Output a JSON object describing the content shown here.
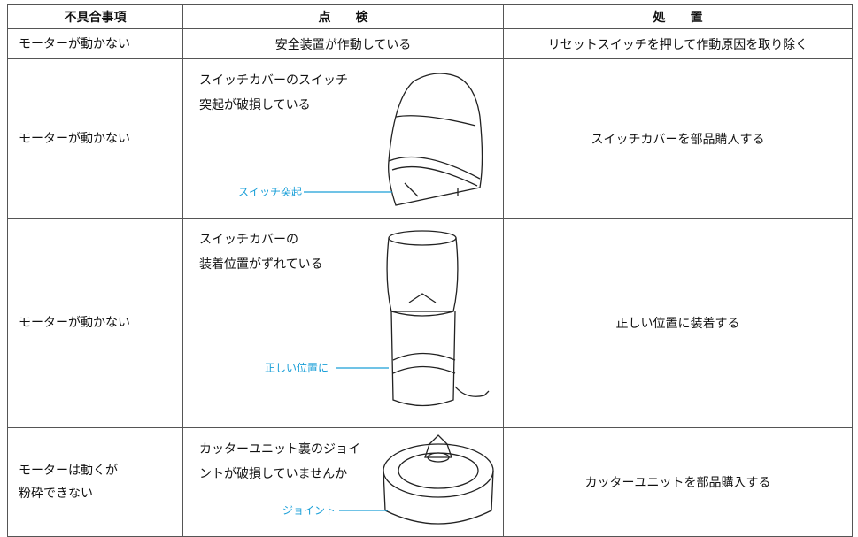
{
  "table": {
    "header": [
      "不具合事項",
      "点　　検",
      "処　　置"
    ],
    "rows": [
      {
        "problem": [
          "モーターが動かない"
        ],
        "check": [
          "安全装置が作動している"
        ],
        "callout": null,
        "action": "リセットスイッチを押して作動原因を取り除く"
      },
      {
        "problem": [
          "モーターが動かない"
        ],
        "check": [
          "スイッチカバーのスイッチ",
          "突起が破損している"
        ],
        "callout": "スイッチ突起",
        "action": "スイッチカバーを部品購入する"
      },
      {
        "problem": [
          "モーターが動かない"
        ],
        "check": [
          "スイッチカバーの",
          "装着位置がずれている"
        ],
        "callout": "正しい位置に",
        "action": "正しい位置に装着する"
      },
      {
        "problem": [
          "モーターは動くが",
          "粉砕できない"
        ],
        "check": [
          "カッターユニット裏のジョイ",
          "ントが破損していませんか"
        ],
        "callout": "ジョイント",
        "action": "カッターユニットを部品購入する"
      }
    ]
  }
}
